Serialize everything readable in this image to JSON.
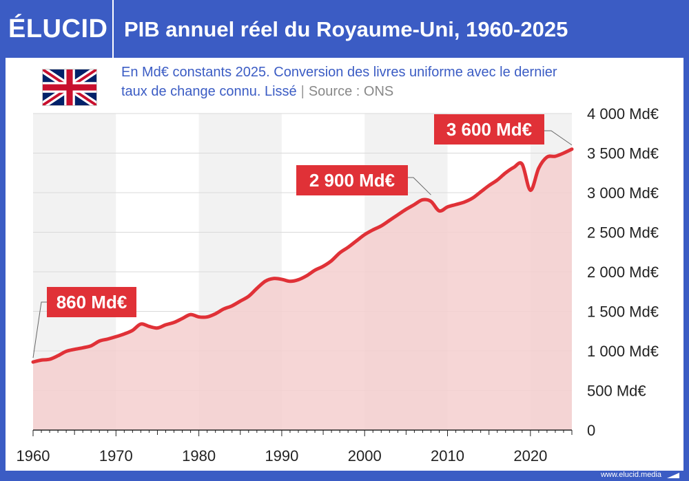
{
  "header": {
    "logo": "ÉLUCID",
    "title": "PIB annuel réel du Royaume-Uni, 1960-2025"
  },
  "subtitle": {
    "line1": "En Md€ constants 2025. Conversion des livres uniforme avec le dernier",
    "line2": "taux de change connu. Lissé",
    "separator": "|",
    "source": "Source : ONS"
  },
  "footer": {
    "url": "www.elucid.media"
  },
  "icons": {
    "flag": "uk-flag-icon"
  },
  "colors": {
    "accent": "#3b5cc4",
    "line": "#e03137",
    "fill": "#f4cfcf",
    "label_bg": "#e03137",
    "label_text": "#ffffff"
  },
  "chart_data": {
    "type": "area",
    "ylim": [
      0,
      4000
    ],
    "xlim": [
      1960,
      2025
    ],
    "ytick_labels": [
      {
        "value": 0,
        "label": "0"
      },
      {
        "value": 500,
        "label": "500 Md€"
      },
      {
        "value": 1000,
        "label": "1 000 Md€"
      },
      {
        "value": 1500,
        "label": "1 500 Md€"
      },
      {
        "value": 2000,
        "label": "2 000 Md€"
      },
      {
        "value": 2500,
        "label": "2 500 Md€"
      },
      {
        "value": 3000,
        "label": "3 000 Md€"
      },
      {
        "value": 3500,
        "label": "3 500 Md€"
      },
      {
        "value": 4000,
        "label": "4 000 Md€"
      }
    ],
    "xtick_labels": [
      "1960",
      "1970",
      "1980",
      "1990",
      "2000",
      "2010",
      "2020"
    ],
    "xtick_values": [
      1960,
      1970,
      1980,
      1990,
      2000,
      2010,
      2020
    ],
    "x": [
      1960,
      1961,
      1962,
      1963,
      1964,
      1965,
      1966,
      1967,
      1968,
      1969,
      1970,
      1971,
      1972,
      1973,
      1974,
      1975,
      1976,
      1977,
      1978,
      1979,
      1980,
      1981,
      1982,
      1983,
      1984,
      1985,
      1986,
      1987,
      1988,
      1989,
      1990,
      1991,
      1992,
      1993,
      1994,
      1995,
      1996,
      1997,
      1998,
      1999,
      2000,
      2001,
      2002,
      2003,
      2004,
      2005,
      2006,
      2007,
      2008,
      2009,
      2010,
      2011,
      2012,
      2013,
      2014,
      2015,
      2016,
      2017,
      2018,
      2019,
      2020,
      2021,
      2022,
      2023,
      2024,
      2025
    ],
    "values": [
      860,
      885,
      895,
      940,
      995,
      1020,
      1040,
      1065,
      1125,
      1150,
      1180,
      1215,
      1260,
      1340,
      1310,
      1290,
      1330,
      1360,
      1410,
      1460,
      1430,
      1430,
      1470,
      1530,
      1570,
      1630,
      1690,
      1790,
      1880,
      1915,
      1905,
      1880,
      1900,
      1950,
      2020,
      2070,
      2140,
      2240,
      2310,
      2390,
      2470,
      2530,
      2580,
      2650,
      2720,
      2790,
      2850,
      2910,
      2890,
      2770,
      2820,
      2850,
      2880,
      2930,
      3010,
      3090,
      3160,
      3250,
      3320,
      3360,
      3030,
      3310,
      3450,
      3460,
      3500,
      3550
    ],
    "annotations": [
      {
        "text": "860 Md€",
        "x": 1960,
        "y": 860
      },
      {
        "text": "2 900 Md€",
        "x": 2008,
        "y": 2920
      },
      {
        "text": "3 600 Md€",
        "x": 2025,
        "y": 3550
      }
    ],
    "grid": true,
    "decade_bands": "alternating"
  }
}
